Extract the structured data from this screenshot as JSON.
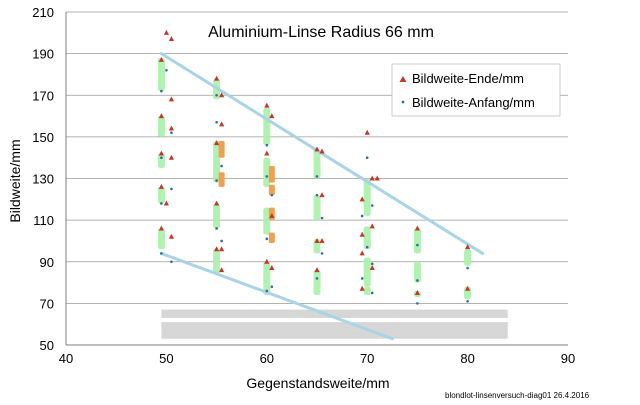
{
  "chart_data": {
    "type": "scatter",
    "title": "Aluminium-Linse Radius 66 mm",
    "xlabel": "Gegenstandsweite/mm",
    "ylabel": "Bildweite/mm",
    "xlim": [
      40,
      90
    ],
    "ylim": [
      50,
      210
    ],
    "xticks": [
      "40",
      "50",
      "60",
      "70",
      "80",
      "90"
    ],
    "yticks": [
      "50",
      "70",
      "90",
      "110",
      "130",
      "150",
      "170",
      "190",
      "210"
    ],
    "grid": "horizontal",
    "legend_position": "top-right",
    "series": [
      {
        "name": "Bildweite-Ende/mm",
        "marker": "triangle",
        "color": "#C0392B",
        "points": [
          [
            49.5,
            187
          ],
          [
            50.0,
            200
          ],
          [
            50.5,
            197
          ],
          [
            50.5,
            168
          ],
          [
            49.5,
            160
          ],
          [
            50.5,
            154
          ],
          [
            49.5,
            142
          ],
          [
            50.5,
            140
          ],
          [
            49.5,
            126
          ],
          [
            50.0,
            118
          ],
          [
            49.5,
            106
          ],
          [
            50.5,
            102
          ],
          [
            55.0,
            178
          ],
          [
            55.5,
            170
          ],
          [
            55.5,
            156
          ],
          [
            55.0,
            147
          ],
          [
            55.0,
            118
          ],
          [
            55.5,
            96
          ],
          [
            55.0,
            96
          ],
          [
            55.5,
            86
          ],
          [
            60.0,
            165
          ],
          [
            60.5,
            160
          ],
          [
            60.0,
            142
          ],
          [
            60.5,
            112
          ],
          [
            60.0,
            90
          ],
          [
            60.5,
            87
          ],
          [
            65.0,
            144
          ],
          [
            65.5,
            143
          ],
          [
            65.5,
            122
          ],
          [
            65.0,
            100
          ],
          [
            65.5,
            100
          ],
          [
            65.0,
            86
          ],
          [
            70.0,
            152
          ],
          [
            70.5,
            130
          ],
          [
            71.0,
            130
          ],
          [
            69.5,
            120
          ],
          [
            70.5,
            107
          ],
          [
            69.5,
            103
          ],
          [
            69.5,
            94
          ],
          [
            70.5,
            87
          ],
          [
            69.5,
            77
          ],
          [
            75.0,
            106
          ],
          [
            75.0,
            75
          ],
          [
            80.0,
            97
          ],
          [
            80.0,
            77
          ]
        ]
      },
      {
        "name": "Bildweite-Anfang/mm",
        "marker": "dot",
        "color": "#2E6DA4",
        "points": [
          [
            50.0,
            182
          ],
          [
            49.5,
            172
          ],
          [
            50.5,
            152
          ],
          [
            49.5,
            140
          ],
          [
            50.5,
            125
          ],
          [
            49.5,
            118
          ],
          [
            50.5,
            90
          ],
          [
            49.5,
            94
          ],
          [
            55.0,
            170
          ],
          [
            55.0,
            157
          ],
          [
            55.5,
            136
          ],
          [
            55.0,
            129
          ],
          [
            55.5,
            100
          ],
          [
            55.0,
            106
          ],
          [
            60.0,
            146
          ],
          [
            60.0,
            131
          ],
          [
            60.5,
            122
          ],
          [
            60.0,
            76
          ],
          [
            60.5,
            78
          ],
          [
            60.0,
            101
          ],
          [
            65.0,
            131
          ],
          [
            65.0,
            122
          ],
          [
            65.5,
            111
          ],
          [
            65.5,
            94
          ],
          [
            65.0,
            82
          ],
          [
            70.0,
            140
          ],
          [
            69.5,
            112
          ],
          [
            70.5,
            117
          ],
          [
            70.0,
            97
          ],
          [
            70.5,
            89
          ],
          [
            69.5,
            82
          ],
          [
            70.5,
            75
          ],
          [
            75.0,
            98
          ],
          [
            75.0,
            81
          ],
          [
            75.0,
            70
          ],
          [
            80.0,
            87
          ],
          [
            80.0,
            71
          ]
        ]
      }
    ],
    "highlight_bars_green": [
      [
        49.5,
        172,
        188
      ],
      [
        49.5,
        150,
        160
      ],
      [
        49.5,
        135,
        142
      ],
      [
        49.5,
        118,
        126
      ],
      [
        49.5,
        96,
        106
      ],
      [
        55.0,
        168,
        178
      ],
      [
        55.0,
        128,
        148
      ],
      [
        55.0,
        106,
        118
      ],
      [
        55.0,
        84,
        96
      ],
      [
        60.0,
        146,
        164
      ],
      [
        60.0,
        126,
        140
      ],
      [
        60.0,
        103,
        116
      ],
      [
        60.0,
        74,
        90
      ],
      [
        65.0,
        130,
        144
      ],
      [
        65.0,
        110,
        122
      ],
      [
        65.0,
        94,
        101
      ],
      [
        65.0,
        74,
        86
      ],
      [
        70.0,
        112,
        130
      ],
      [
        70.0,
        96,
        107
      ],
      [
        70.0,
        78,
        92
      ],
      [
        70.0,
        74,
        78
      ],
      [
        75.0,
        94,
        106
      ],
      [
        75.0,
        80,
        90
      ],
      [
        75.0,
        73,
        76
      ],
      [
        80.0,
        88,
        96
      ],
      [
        80.0,
        72,
        78
      ]
    ],
    "highlight_bars_orange": [
      [
        55.5,
        140,
        148
      ],
      [
        55.5,
        126,
        133
      ],
      [
        60.5,
        128,
        136
      ],
      [
        60.5,
        122,
        127
      ],
      [
        60.5,
        110,
        116
      ],
      [
        60.5,
        99,
        104
      ]
    ],
    "trend_lines": [
      [
        [
          49.5,
          190
        ],
        [
          81.5,
          94
        ]
      ],
      [
        [
          49.5,
          94
        ],
        [
          72.5,
          53
        ]
      ]
    ],
    "gray_bands": [
      [
        49.5,
        84,
        63,
        67
      ],
      [
        49.5,
        84,
        57,
        61
      ],
      [
        49.5,
        84,
        53,
        57
      ]
    ],
    "footnote": "blondlot-linsenversuch-diag01  26.4.2016"
  }
}
